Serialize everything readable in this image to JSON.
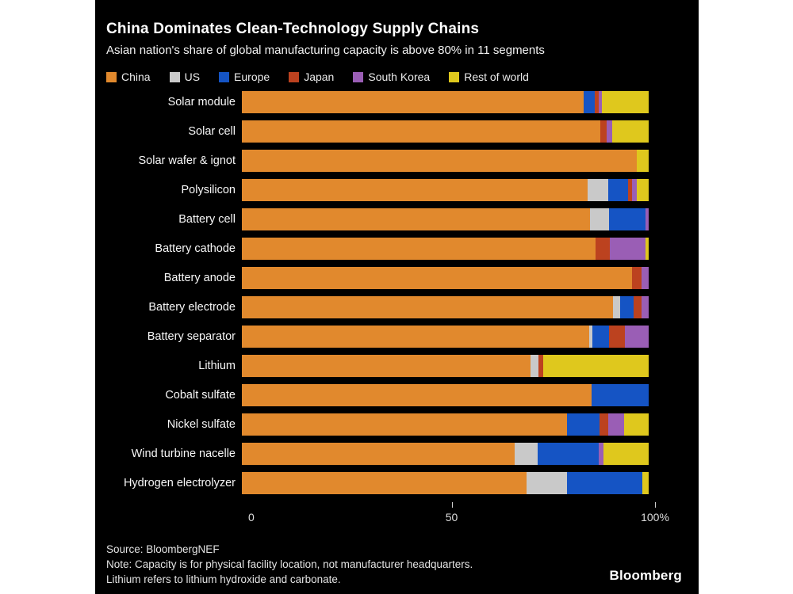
{
  "page": {
    "margin_color": "#ffffff",
    "panel_color": "#000000"
  },
  "header": {
    "title": "China Dominates Clean-Technology Supply Chains",
    "subtitle": "Asian nation's share of global manufacturing capacity is above 80% in 11 segments"
  },
  "chart_data": {
    "type": "bar",
    "orientation": "horizontal",
    "stacked": true,
    "unit": "percent share of global manufacturing capacity",
    "xlim": [
      0,
      100
    ],
    "legend_position": "top",
    "grid": false,
    "categories": [
      "Solar module",
      "Solar cell",
      "Solar wafer & ignot",
      "Polysilicon",
      "Battery cell",
      "Battery cathode",
      "Battery anode",
      "Battery electrode",
      "Battery separator",
      "Lithium",
      "Cobalt sulfate",
      "Nickel sulfate",
      "Wind turbine nacelle",
      "Hydrogen electrolyzer"
    ],
    "series": [
      {
        "name": "China",
        "color": "#E1892D",
        "values": [
          84,
          88.2,
          97,
          85,
          85.5,
          87,
          96,
          91.2,
          85.4,
          71,
          86,
          80,
          67,
          70
        ]
      },
      {
        "name": "US",
        "color": "#C9C9C9",
        "values": [
          0,
          0,
          0,
          5,
          4.7,
          0,
          0,
          1.8,
          0.8,
          2,
          0,
          0,
          5.8,
          10
        ]
      },
      {
        "name": "Europe",
        "color": "#1554C4",
        "values": [
          2.7,
          0,
          0,
          5,
          9,
          0,
          0,
          3.3,
          4.1,
          0,
          14,
          8,
          15,
          18.5
        ]
      },
      {
        "name": "Japan",
        "color": "#BC421F",
        "values": [
          1,
          1.4,
          0,
          1,
          0,
          3.4,
          2.2,
          1.9,
          3.9,
          1,
          0,
          2,
          0,
          0
        ]
      },
      {
        "name": "South Korea",
        "color": "#9A5EB5",
        "values": [
          0.8,
          1.4,
          0,
          1,
          0.8,
          8.8,
          1.8,
          1.8,
          5.8,
          0,
          0,
          4,
          1,
          0
        ]
      },
      {
        "name": "Rest of world",
        "color": "#DFC81D",
        "values": [
          11.5,
          9,
          3,
          3,
          0,
          0.8,
          0,
          0,
          0,
          26,
          0,
          6,
          11.2,
          1.5
        ]
      }
    ],
    "x_ticks": [
      {
        "value": 0,
        "label": "0",
        "mark": false
      },
      {
        "value": 50,
        "label": "50",
        "mark": true
      },
      {
        "value": 100,
        "label": "100%",
        "mark": true
      }
    ]
  },
  "footer": {
    "source": "Source: BloombergNEF",
    "note_line1": "Note: Capacity is for physical facility location, not manufacturer headquarters.",
    "note_line2": "Lithium refers to lithium hydroxide and carbonate.",
    "brand": "Bloomberg"
  }
}
